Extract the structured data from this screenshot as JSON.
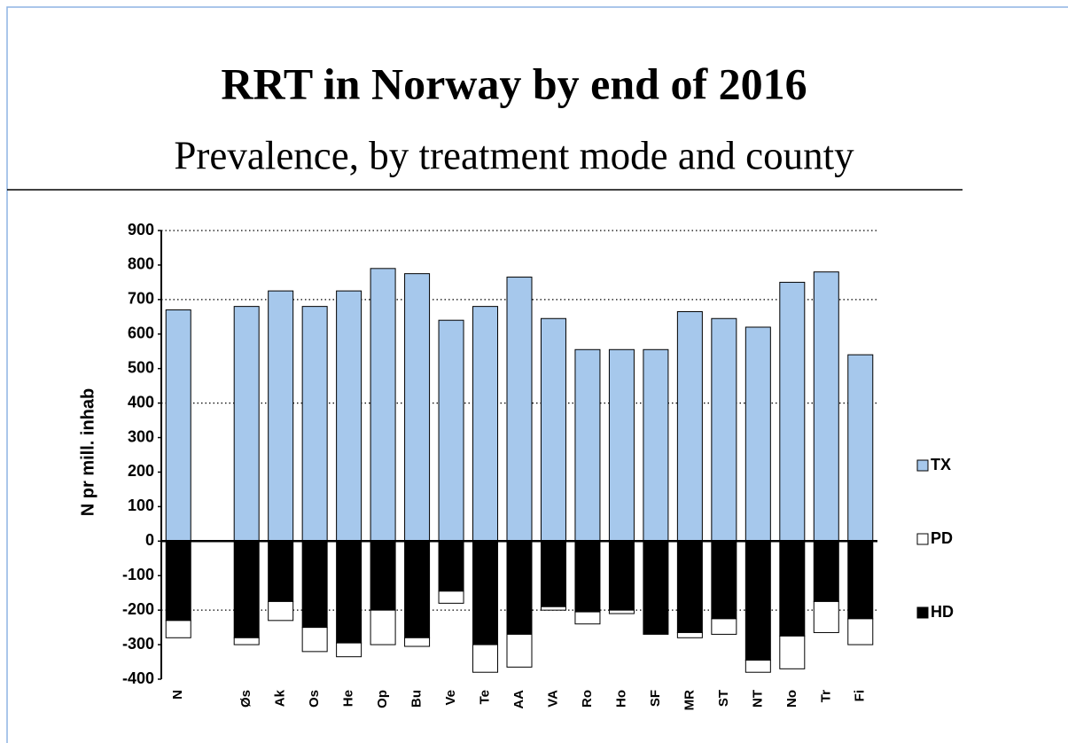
{
  "chart_data": {
    "type": "bar",
    "stacked": true,
    "title": "RRT in Norway by end of 2016",
    "subtitle": "Prevalence, by treatment mode and county",
    "y_label": "N pr mill. inhab",
    "categories": [
      "N",
      null,
      "Øs",
      "Ak",
      "Os",
      "He",
      "Op",
      "Bu",
      "Ve",
      "Te",
      "AA",
      "VA",
      "Ro",
      "Ho",
      "SF",
      "MR",
      "ST",
      "NT",
      "No",
      "Tr",
      "Fi"
    ],
    "series": [
      {
        "name": "TX",
        "color": "#a6c8ec",
        "values": [
          670,
          null,
          680,
          725,
          680,
          725,
          790,
          775,
          640,
          680,
          765,
          645,
          555,
          555,
          555,
          665,
          645,
          620,
          750,
          780,
          540
        ]
      },
      {
        "name": "PD",
        "color": "#ffffff",
        "values": [
          -50,
          null,
          -20,
          -55,
          -70,
          -40,
          -100,
          -25,
          -35,
          -80,
          -95,
          -10,
          -35,
          -10,
          0,
          -15,
          -45,
          -35,
          -95,
          -90,
          -75
        ]
      },
      {
        "name": "HD",
        "color": "#000000",
        "values": [
          -230,
          null,
          -280,
          -175,
          -250,
          -295,
          -200,
          -280,
          -145,
          -300,
          -270,
          -190,
          -205,
          -200,
          -270,
          -265,
          -225,
          -345,
          -275,
          -175,
          -225
        ]
      }
    ],
    "stack_order": [
      "HD",
      "PD"
    ],
    "ylim": [
      -400,
      900
    ],
    "yticks": [
      900,
      800,
      700,
      600,
      500,
      400,
      300,
      200,
      100,
      0,
      -100,
      -200,
      -300,
      -400
    ],
    "grid_values": [
      900,
      700,
      400,
      -200
    ],
    "legend": "right"
  }
}
